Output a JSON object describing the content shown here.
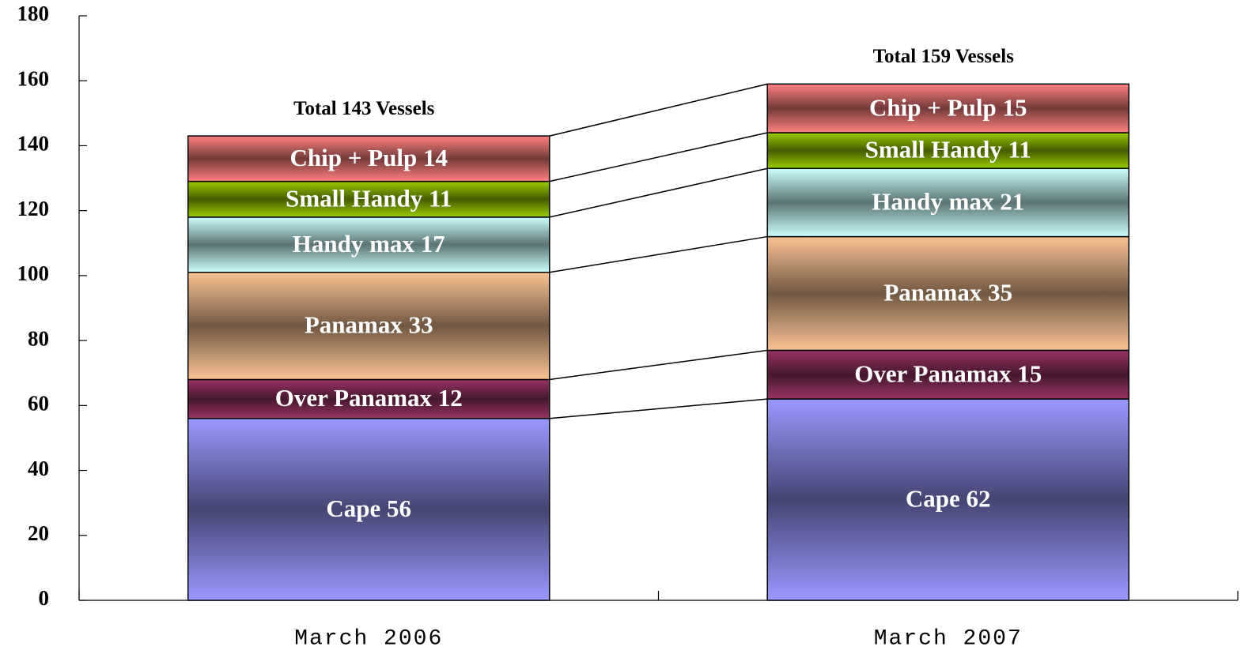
{
  "chart_data": {
    "type": "stacked_bar",
    "categories": [
      "March 2006",
      "March 2007"
    ],
    "series": [
      {
        "name": "Cape",
        "color": "#9999ff",
        "values": [
          56,
          62
        ],
        "value_labels": [
          "Cape 56",
          "Cape 62"
        ]
      },
      {
        "name": "Over Panamax",
        "color": "#993366",
        "values": [
          12,
          15
        ],
        "value_labels": [
          "Over Panamax 12",
          "Over Panamax 15"
        ]
      },
      {
        "name": "Panamax",
        "color": "#fac394",
        "values": [
          33,
          35
        ],
        "value_labels": [
          "Panamax 33",
          "Panamax 35"
        ]
      },
      {
        "name": "Handy max",
        "color": "#ccffff",
        "values": [
          17,
          21
        ],
        "value_labels": [
          "Handy max 17",
          "Handy max 21"
        ]
      },
      {
        "name": "Small Handy",
        "color": "#99cc00",
        "values": [
          11,
          11
        ],
        "value_labels": [
          "Small Handy 11",
          "Small Handy 11"
        ]
      },
      {
        "name": "Chip + Pulp",
        "color": "#ff8080",
        "values": [
          14,
          15
        ],
        "value_labels": [
          "Chip + Pulp 14",
          "Chip + Pulp 15"
        ]
      }
    ],
    "annotations": [
      "Total 143 Vessels",
      "Total 159 Vessels"
    ],
    "ylim": [
      0,
      180
    ],
    "yticks": [
      0,
      20,
      40,
      60,
      80,
      100,
      120,
      140,
      160,
      180
    ],
    "grid": false,
    "legend": false
  }
}
